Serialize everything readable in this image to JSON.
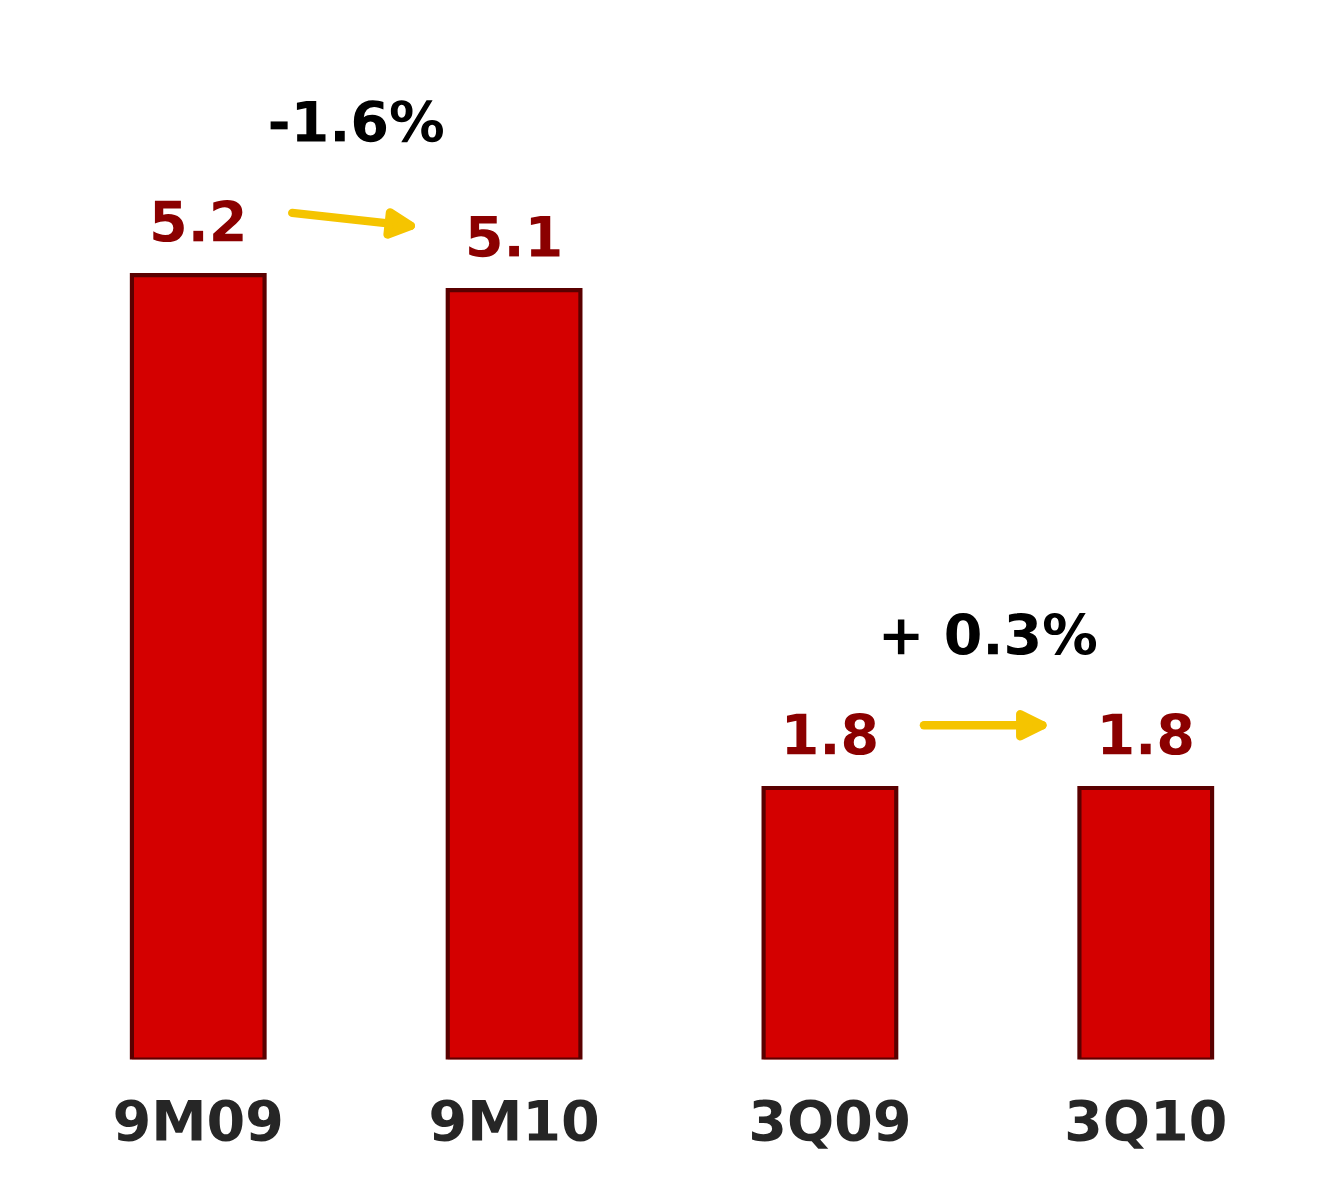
{
  "chart_data": {
    "type": "bar",
    "categories": [
      "9M09",
      "9M10",
      "3Q09",
      "3Q10"
    ],
    "values": [
      5.2,
      5.1,
      1.8,
      1.8
    ],
    "color": "#d40000",
    "data_labels": true,
    "annotations": [
      "-1.6%",
      "+ 0.3%"
    ]
  }
}
